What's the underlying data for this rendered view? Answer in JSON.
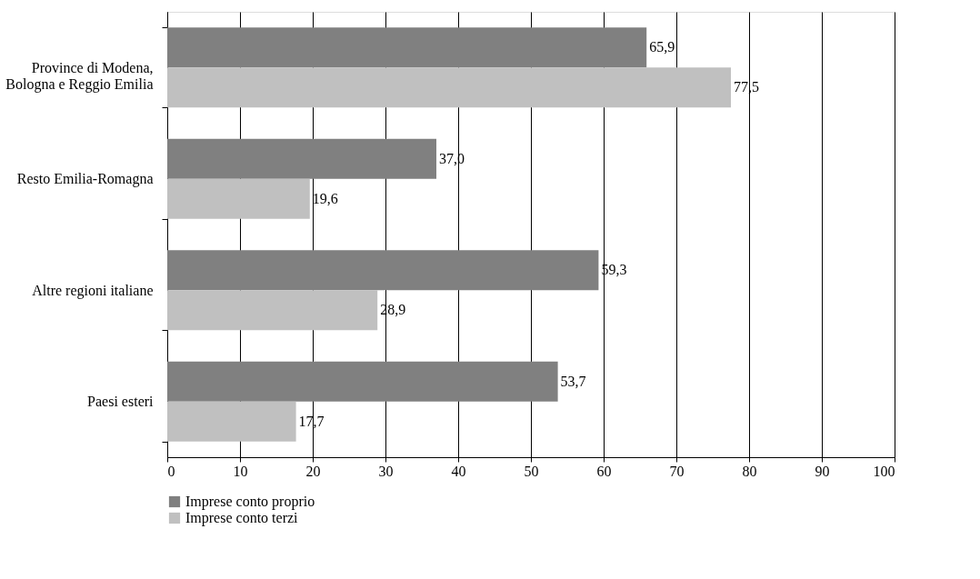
{
  "chart_data": {
    "type": "bar",
    "orientation": "horizontal",
    "categories": [
      "Province di Modena,\nBologna e Reggio Emilia",
      "Resto Emilia-Romagna",
      "Altre regioni italiane",
      "Paesi esteri"
    ],
    "series": [
      {
        "name": "Imprese conto proprio",
        "color": "#808080",
        "values": [
          65.9,
          37.0,
          59.3,
          53.7
        ],
        "value_labels": [
          "65,9",
          "37,0",
          "59,3",
          "53,7"
        ]
      },
      {
        "name": "Imprese conto terzi",
        "color": "#c0c0c0",
        "values": [
          77.5,
          19.6,
          28.9,
          17.7
        ],
        "value_labels": [
          "77,5",
          "19,6",
          "28,9",
          "17,7"
        ]
      }
    ],
    "xlim": [
      0,
      100
    ],
    "xticks": [
      0,
      10,
      20,
      30,
      40,
      50,
      60,
      70,
      80,
      90,
      100
    ],
    "grid": "x",
    "legend": "bottom"
  }
}
